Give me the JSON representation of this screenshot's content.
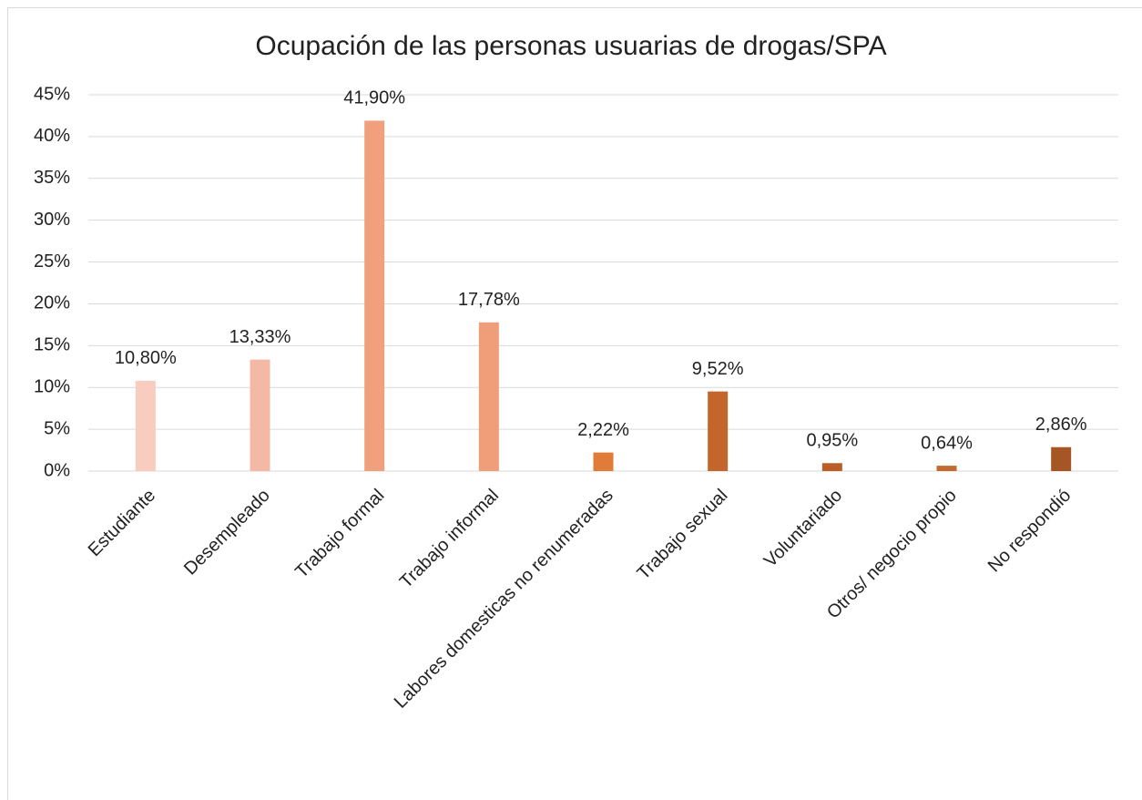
{
  "chart_data": {
    "type": "bar",
    "title": "Ocupación de las personas usuarias de drogas/SPA",
    "categories": [
      "Estudiante",
      "Desempleado",
      "Trabajo formal",
      "Trabajo informal",
      "Labores domesticas no renumeradas",
      "Trabajo sexual",
      "Voluntariado",
      "Otros/ negocio propio",
      "No respondió"
    ],
    "values": [
      10.8,
      13.33,
      41.9,
      17.78,
      2.22,
      9.52,
      0.95,
      0.64,
      2.86
    ],
    "value_labels": [
      "10,80%",
      "13,33%",
      "41,90%",
      "17,78%",
      "2,22%",
      "9,52%",
      "0,95%",
      "0,64%",
      "2,86%"
    ],
    "colors": [
      "#f8cdbf",
      "#f4b9a4",
      "#f1a07e",
      "#f09d79",
      "#e07b39",
      "#c4652b",
      "#b85e26",
      "#c26a30",
      "#a65625"
    ],
    "ylim": [
      0,
      45
    ],
    "yticks": [
      {
        "value": 0,
        "label": "0%"
      },
      {
        "value": 5,
        "label": "5%"
      },
      {
        "value": 10,
        "label": "10%"
      },
      {
        "value": 15,
        "label": "15%"
      },
      {
        "value": 20,
        "label": "20%"
      },
      {
        "value": 25,
        "label": "25%"
      },
      {
        "value": 30,
        "label": "30%"
      },
      {
        "value": 35,
        "label": "35%"
      },
      {
        "value": 40,
        "label": "40%"
      },
      {
        "value": 45,
        "label": "45%"
      }
    ],
    "grid": true
  }
}
